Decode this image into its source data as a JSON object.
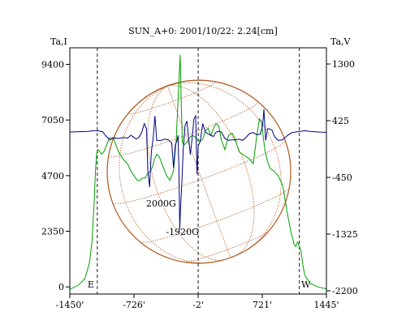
{
  "chart_data": {
    "type": "line",
    "title": "SUN_A+0: 2001/10/22: 2.24[cm]",
    "left_axis_label": "Ta,I",
    "right_axis_label": "Ta,V",
    "x_ticks": [
      -1450,
      -726,
      -2,
      721,
      1445
    ],
    "x_tick_labels": [
      "-1450'",
      "-726'",
      "-2'",
      "721'",
      "1445'"
    ],
    "xlim": [
      -1450,
      1445
    ],
    "left_ticks": [
      0,
      2350,
      4700,
      7050,
      9400
    ],
    "left_tick_labels": [
      "0",
      "2350",
      "4700",
      "7050",
      "9400"
    ],
    "left_ylim": [
      -300,
      10100
    ],
    "right_ticks": [
      -2200,
      -1325,
      -450,
      425,
      1300
    ],
    "right_tick_labels": [
      "-2200",
      "-1325",
      "-450",
      "425",
      "1300"
    ],
    "right_ylim": [
      -2250,
      1550
    ],
    "markers": [
      {
        "x": -1140,
        "label": "E"
      },
      {
        "x": -2,
        "label": ""
      },
      {
        "x": 1140,
        "label": "W"
      }
    ],
    "annotations": [
      {
        "text": "2000G",
        "x": -420,
        "y": 3400
      },
      {
        "text": "-1920G",
        "x": -180,
        "y": 2200
      }
    ],
    "colors": {
      "intensity": "#00a000",
      "polarization": "#000080",
      "sun_disk": "#b05a20",
      "axes": "#000000"
    },
    "series": [
      {
        "axis": "left",
        "color": "#00a000",
        "x": [
          -1450,
          -1350,
          -1280,
          -1230,
          -1200,
          -1175,
          -1160,
          -1145,
          -1130,
          -1110,
          -1090,
          -1060,
          -1030,
          -1000,
          -960,
          -900,
          -850,
          -800,
          -760,
          -726,
          -690,
          -660,
          -630,
          -600,
          -570,
          -540,
          -515,
          -495,
          -470,
          -440,
          -400,
          -360,
          -320,
          -280,
          -250,
          -225,
          -205,
          -195,
          -180,
          -160,
          -130,
          -100,
          -70,
          -40,
          -20,
          -2,
          20,
          50,
          80,
          110,
          140,
          170,
          200,
          230,
          260,
          300,
          340,
          380,
          420,
          460,
          500,
          540,
          580,
          620,
          660,
          690,
          710,
          730,
          750,
          780,
          810,
          850,
          900,
          950,
          1000,
          1040,
          1080,
          1100,
          1120,
          1140,
          1160,
          1180,
          1200,
          1260,
          1350,
          1445
        ],
        "values": [
          -100,
          80,
          350,
          1000,
          1900,
          3600,
          5000,
          5700,
          5800,
          5700,
          5600,
          5750,
          6050,
          6300,
          6300,
          5700,
          5400,
          5200,
          4900,
          4700,
          4500,
          4500,
          4600,
          4600,
          4800,
          4900,
          5100,
          5400,
          5600,
          5500,
          5100,
          4700,
          4500,
          4900,
          6200,
          8200,
          9800,
          8000,
          6100,
          6000,
          6100,
          6300,
          6400,
          6350,
          6250,
          6200,
          6150,
          6250,
          6600,
          6700,
          6400,
          6700,
          6900,
          6800,
          6200,
          5800,
          6400,
          6500,
          6200,
          5700,
          5600,
          5500,
          5400,
          5200,
          6400,
          7100,
          7000,
          6400,
          5800,
          5300,
          5000,
          4900,
          4700,
          4300,
          3200,
          2400,
          1800,
          1700,
          1900,
          1700,
          1500,
          900,
          500,
          150,
          0,
          -80
        ]
      },
      {
        "axis": "right",
        "color": "#000080",
        "x": [
          -1450,
          -1350,
          -1250,
          -1180,
          -1150,
          -1120,
          -1080,
          -1050,
          -1000,
          -950,
          -900,
          -850,
          -800,
          -760,
          -726,
          -700,
          -670,
          -640,
          -610,
          -585,
          -570,
          -550,
          -530,
          -510,
          -490,
          -470,
          -450,
          -420,
          -380,
          -340,
          -300,
          -280,
          -260,
          -240,
          -230,
          -220,
          -210,
          -200,
          -185,
          -170,
          -150,
          -130,
          -110,
          -90,
          -70,
          -50,
          -30,
          -15,
          -2,
          20,
          50,
          80,
          110,
          140,
          170,
          200,
          230,
          260,
          300,
          340,
          380,
          420,
          460,
          500,
          540,
          580,
          620,
          660,
          700,
          725,
          740,
          760,
          780,
          800,
          830,
          860,
          900,
          950,
          1000,
          1050,
          1100,
          1150,
          1200,
          1260,
          1350,
          1445
        ],
        "values": [
          250,
          255,
          260,
          270,
          270,
          265,
          255,
          200,
          130,
          160,
          150,
          165,
          155,
          200,
          165,
          140,
          170,
          240,
          380,
          300,
          -350,
          -600,
          -50,
          150,
          500,
          120,
          120,
          120,
          140,
          130,
          80,
          -300,
          50,
          120,
          200,
          -300,
          -1250,
          -900,
          -500,
          0,
          350,
          420,
          150,
          -100,
          150,
          450,
          500,
          -400,
          40,
          100,
          380,
          250,
          220,
          200,
          180,
          250,
          260,
          250,
          150,
          120,
          130,
          130,
          140,
          120,
          170,
          230,
          240,
          210,
          220,
          350,
          600,
          120,
          300,
          300,
          280,
          180,
          120,
          130,
          190,
          240,
          250,
          260,
          270,
          260,
          250,
          245
        ]
      }
    ]
  }
}
